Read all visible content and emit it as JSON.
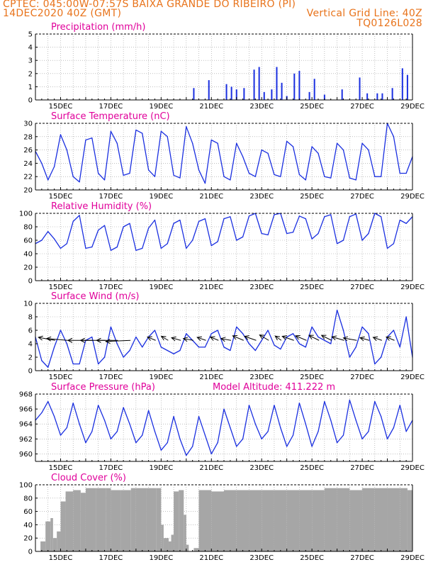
{
  "header": {
    "line1": "CPTEC:   045:00W-07:57S   BAIXA GRANDE DO RIBEIRO (PI)",
    "line2": "14DEC2020 40Z (GMT)",
    "grid_note": "Vertical Grid Line: 40Z",
    "code": "TQ0126L028"
  },
  "x_axis": {
    "start_day": 14,
    "end_day": 29,
    "tick_labels": [
      "15DEC",
      "17DEC",
      "19DEC",
      "21DEC",
      "23DEC",
      "25DEC",
      "27DEC",
      "29DEC"
    ]
  },
  "colors": {
    "line": "#1a2fe0",
    "precip": "#1a2fe0",
    "cloud": "#a6a6a6",
    "title": "#e0009a",
    "header": "#e8731b"
  },
  "chart_data": [
    {
      "id": "precip",
      "type": "bar",
      "title": "Precipitation (mm/h)",
      "ylim": [
        0,
        5
      ],
      "yticks": [
        "0",
        "1",
        "2",
        "3",
        "4",
        "5"
      ],
      "x": [
        20.3,
        20.9,
        21.6,
        21.8,
        22.0,
        22.3,
        22.7,
        22.9,
        23.1,
        23.4,
        23.6,
        23.8,
        24.0,
        24.3,
        24.5,
        24.9,
        25.1,
        25.5,
        26.2,
        26.9,
        27.2,
        27.6,
        27.8,
        28.2,
        28.6,
        28.8
      ],
      "values": [
        0.9,
        1.5,
        1.2,
        1.0,
        0.8,
        0.9,
        2.3,
        2.5,
        0.6,
        0.8,
        2.5,
        1.3,
        0.3,
        2.0,
        2.2,
        0.6,
        1.6,
        0.4,
        0.8,
        1.7,
        0.5,
        0.5,
        0.5,
        0.9,
        2.4,
        1.9
      ]
    },
    {
      "id": "temp",
      "type": "line",
      "title": "Surface Temperature (nC)",
      "ylim": [
        20,
        30
      ],
      "yticks": [
        "20",
        "22",
        "24",
        "26",
        "28",
        "30"
      ],
      "x": [
        14.0,
        14.25,
        14.5,
        14.75,
        15.0,
        15.25,
        15.5,
        15.75,
        16.0,
        16.25,
        16.5,
        16.75,
        17.0,
        17.25,
        17.5,
        17.75,
        18.0,
        18.25,
        18.5,
        18.75,
        19.0,
        19.25,
        19.5,
        19.75,
        20.0,
        20.25,
        20.5,
        20.75,
        21.0,
        21.25,
        21.5,
        21.75,
        22.0,
        22.25,
        22.5,
        22.75,
        23.0,
        23.25,
        23.5,
        23.75,
        24.0,
        24.25,
        24.5,
        24.75,
        25.0,
        25.25,
        25.5,
        25.75,
        26.0,
        26.25,
        26.5,
        26.75,
        27.0,
        27.25,
        27.5,
        27.75,
        28.0,
        28.25,
        28.5,
        28.75,
        29.0
      ],
      "values": [
        25.8,
        24.0,
        21.5,
        23.5,
        28.3,
        26.0,
        22.0,
        21.2,
        27.5,
        27.8,
        22.5,
        21.5,
        28.8,
        27.0,
        22.2,
        22.5,
        29.0,
        28.5,
        23.0,
        22.0,
        28.8,
        28.0,
        22.2,
        21.8,
        29.5,
        27.0,
        23.0,
        21.0,
        27.5,
        27.0,
        22.0,
        21.5,
        27.0,
        25.0,
        22.5,
        22.0,
        26.0,
        25.5,
        22.3,
        22.0,
        27.3,
        26.5,
        22.3,
        21.5,
        26.5,
        25.5,
        22.0,
        21.8,
        27.0,
        26.0,
        21.8,
        21.5,
        27.0,
        26.0,
        22.0,
        22.0,
        30.0,
        28.0,
        22.5,
        22.5,
        25.0
      ]
    },
    {
      "id": "rh",
      "type": "line",
      "title": "Relative Humidity (%)",
      "ylim": [
        0,
        100
      ],
      "yticks": [
        "0",
        "20",
        "40",
        "60",
        "80",
        "100"
      ],
      "x": [
        14.0,
        14.25,
        14.5,
        14.75,
        15.0,
        15.25,
        15.5,
        15.75,
        16.0,
        16.25,
        16.5,
        16.75,
        17.0,
        17.25,
        17.5,
        17.75,
        18.0,
        18.25,
        18.5,
        18.75,
        19.0,
        19.25,
        19.5,
        19.75,
        20.0,
        20.25,
        20.5,
        20.75,
        21.0,
        21.25,
        21.5,
        21.75,
        22.0,
        22.25,
        22.5,
        22.75,
        23.0,
        23.25,
        23.5,
        23.75,
        24.0,
        24.25,
        24.5,
        24.75,
        25.0,
        25.25,
        25.5,
        25.75,
        26.0,
        26.25,
        26.5,
        26.75,
        27.0,
        27.25,
        27.5,
        27.75,
        28.0,
        28.25,
        28.5,
        28.75,
        29.0
      ],
      "values": [
        55,
        60,
        73,
        62,
        48,
        55,
        88,
        97,
        48,
        50,
        75,
        82,
        45,
        50,
        80,
        85,
        45,
        48,
        78,
        90,
        48,
        55,
        85,
        90,
        48,
        60,
        88,
        92,
        52,
        58,
        92,
        95,
        60,
        65,
        96,
        100,
        70,
        68,
        98,
        100,
        70,
        72,
        96,
        92,
        62,
        70,
        95,
        98,
        55,
        60,
        95,
        99,
        60,
        70,
        100,
        95,
        48,
        55,
        90,
        85,
        95
      ]
    },
    {
      "id": "wind",
      "type": "line",
      "title": "Surface Wind (m/s)",
      "ylim": [
        0,
        10
      ],
      "yticks": [
        "0",
        "2",
        "4",
        "6",
        "8",
        "10"
      ],
      "x": [
        14.0,
        14.25,
        14.5,
        14.75,
        15.0,
        15.25,
        15.5,
        15.75,
        16.0,
        16.25,
        16.5,
        16.75,
        17.0,
        17.25,
        17.5,
        17.75,
        18.0,
        18.25,
        18.5,
        18.75,
        19.0,
        19.25,
        19.5,
        19.75,
        20.0,
        20.25,
        20.5,
        20.75,
        21.0,
        21.25,
        21.5,
        21.75,
        22.0,
        22.25,
        22.5,
        22.75,
        23.0,
        23.25,
        23.5,
        23.75,
        24.0,
        24.25,
        24.5,
        24.75,
        25.0,
        25.25,
        25.5,
        25.75,
        26.0,
        26.25,
        26.5,
        26.75,
        27.0,
        27.25,
        27.5,
        27.75,
        28.0,
        28.25,
        28.5,
        28.75,
        29.0
      ],
      "values": [
        5,
        1.5,
        0.5,
        3.5,
        6,
        4,
        1,
        1,
        4.5,
        5,
        1,
        2,
        6.5,
        4,
        2,
        3,
        5,
        3.5,
        5,
        6,
        3.5,
        3,
        2.5,
        3,
        5.5,
        4.5,
        3.5,
        3.5,
        5.5,
        6,
        3.5,
        3,
        6.5,
        5.5,
        4,
        3,
        4.5,
        6,
        3.8,
        3.2,
        5,
        5.5,
        4,
        3.5,
        6.5,
        5,
        4.5,
        4,
        9,
        6,
        2,
        3.5,
        6.5,
        5.5,
        1,
        2,
        5,
        6,
        3.5,
        8,
        2
      ]
    },
    {
      "id": "pressure",
      "type": "line",
      "title": "Surface Pressure (hPa)",
      "annotation": "Model Altitude: 411.222 m",
      "ylim": [
        959,
        968
      ],
      "yticks": [
        "960",
        "962",
        "964",
        "966",
        "968"
      ],
      "x": [
        14.0,
        14.25,
        14.5,
        14.75,
        15.0,
        15.25,
        15.5,
        15.75,
        16.0,
        16.25,
        16.5,
        16.75,
        17.0,
        17.25,
        17.5,
        17.75,
        18.0,
        18.25,
        18.5,
        18.75,
        19.0,
        19.25,
        19.5,
        19.75,
        20.0,
        20.25,
        20.5,
        20.75,
        21.0,
        21.25,
        21.5,
        21.75,
        22.0,
        22.25,
        22.5,
        22.75,
        23.0,
        23.25,
        23.5,
        23.75,
        24.0,
        24.25,
        24.5,
        24.75,
        25.0,
        25.25,
        25.5,
        25.75,
        26.0,
        26.25,
        26.5,
        26.75,
        27.0,
        27.25,
        27.5,
        27.75,
        28.0,
        28.25,
        28.5,
        28.75,
        29.0
      ],
      "values": [
        964.5,
        965.5,
        967.0,
        965.0,
        962.5,
        963.5,
        966.8,
        964.0,
        961.5,
        963.0,
        966.5,
        964.5,
        962.0,
        963.0,
        966.2,
        964.0,
        961.5,
        962.5,
        965.8,
        963.0,
        960.5,
        961.5,
        965.0,
        962.0,
        959.8,
        961.0,
        965.0,
        962.5,
        960.0,
        961.5,
        966.0,
        963.5,
        961.0,
        962.0,
        966.5,
        964.0,
        962.0,
        963.0,
        966.5,
        963.5,
        961.0,
        962.5,
        966.8,
        964.0,
        961.0,
        963.0,
        967.0,
        964.5,
        961.5,
        962.5,
        967.2,
        964.5,
        962.0,
        963.0,
        967.0,
        965.0,
        962.0,
        963.5,
        966.5,
        963.0,
        964.5
      ]
    },
    {
      "id": "cloud",
      "type": "area",
      "title": "Cloud Cover (%)",
      "ylim": [
        0,
        100
      ],
      "yticks": [
        "0",
        "20",
        "40",
        "60",
        "80",
        "100"
      ],
      "x": [
        14.2,
        14.4,
        14.6,
        14.7,
        14.85,
        15.0,
        15.2,
        15.5,
        15.8,
        16.0,
        16.4,
        16.8,
        17.0,
        17.4,
        17.8,
        18.0,
        18.4,
        18.8,
        19.0,
        19.1,
        19.3,
        19.4,
        19.5,
        19.7,
        19.9,
        20.0,
        20.1,
        20.3,
        20.5,
        21.0,
        21.5,
        22.0,
        22.5,
        23.0,
        23.5,
        24.0,
        24.5,
        25.0,
        25.5,
        26.0,
        26.5,
        27.0,
        27.5,
        28.0,
        28.5,
        28.8,
        29.0
      ],
      "values": [
        15,
        45,
        50,
        20,
        30,
        75,
        90,
        92,
        88,
        95,
        95,
        95,
        92,
        92,
        95,
        95,
        95,
        95,
        40,
        20,
        15,
        25,
        90,
        92,
        55,
        10,
        0,
        5,
        92,
        90,
        92,
        92,
        92,
        92,
        92,
        92,
        92,
        92,
        95,
        95,
        92,
        95,
        95,
        95,
        95,
        92,
        100
      ]
    }
  ],
  "wind_vectors": {
    "x": [
      14.5,
      15.0,
      16.0,
      16.5,
      17.0,
      17.5,
      18.5,
      19.0,
      19.5,
      20.0,
      20.5,
      21.0,
      21.5,
      22.0,
      22.5,
      23.0,
      23.5,
      24.0,
      24.5,
      25.0,
      25.5,
      26.0,
      26.5,
      27.0,
      27.5,
      28.0
    ],
    "speed": [
      5,
      6,
      7,
      7,
      6,
      7,
      3,
      3,
      3,
      3,
      3,
      3,
      3,
      4,
      4,
      4,
      3,
      4,
      4,
      4,
      4,
      4,
      4,
      3,
      3,
      3
    ],
    "dir_to_deg": [
      200,
      190,
      180,
      180,
      180,
      175,
      220,
      230,
      210,
      200,
      215,
      220,
      200,
      220,
      215,
      230,
      235,
      215,
      220,
      225,
      225,
      210,
      200,
      210,
      215,
      220
    ]
  }
}
